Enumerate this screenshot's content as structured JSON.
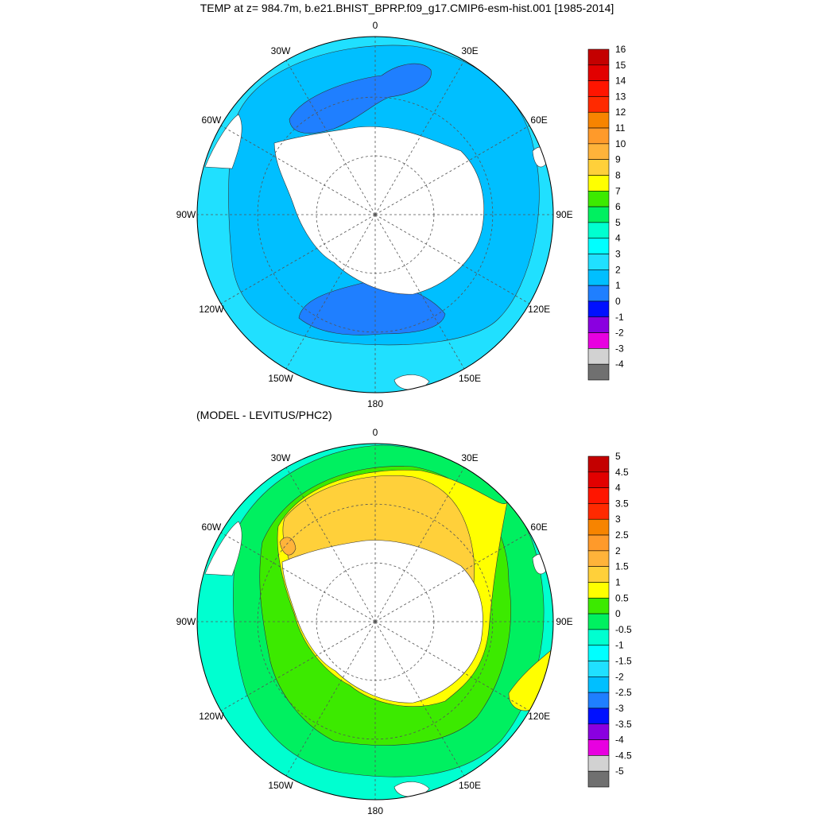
{
  "top_title": "TEMP at z= 984.7m, b.e21.BHIST_BPRP.f09_g17.CMIP6-esm-hist.001 [1985-2014]",
  "bottom_title": "(MODEL - LEVITUS/PHC2)",
  "lon_labels": [
    "0",
    "30E",
    "60E",
    "90E",
    "120E",
    "150E",
    "180",
    "150W",
    "120W",
    "90W",
    "60W",
    "30W"
  ],
  "top_colorbar": {
    "labels": [
      "16",
      "15",
      "14",
      "13",
      "12",
      "11",
      "10",
      "9",
      "8",
      "7",
      "6",
      "5",
      "4",
      "3",
      "2",
      "1",
      "0",
      "-1",
      "-2",
      "-3",
      "-4"
    ],
    "colors": [
      "#c40000",
      "#e20000",
      "#ff1500",
      "#ff2a00",
      "#f78400",
      "#ff9a2a",
      "#ffb33a",
      "#ffd03a",
      "#ffff00",
      "#3cea00",
      "#00f060",
      "#00ffd0",
      "#00ffff",
      "#20e0ff",
      "#00bfff",
      "#1f7fff",
      "#0010ff",
      "#8a00e0",
      "#e800e0",
      "#d2d2d2",
      "#707070"
    ]
  },
  "bottom_colorbar": {
    "labels": [
      "5",
      "4.5",
      "4",
      "3.5",
      "3",
      "2.5",
      "2",
      "1.5",
      "1",
      "0.5",
      "0",
      "-0.5",
      "-1",
      "-1.5",
      "-2",
      "-2.5",
      "-3",
      "-3.5",
      "-4",
      "-4.5",
      "-5"
    ],
    "colors": [
      "#c40000",
      "#e20000",
      "#ff1500",
      "#ff2a00",
      "#f78400",
      "#ff9a2a",
      "#ffb33a",
      "#ffd03a",
      "#ffff00",
      "#3cea00",
      "#00f060",
      "#00ffd0",
      "#00ffff",
      "#20e0ff",
      "#00bfff",
      "#1f7fff",
      "#0010ff",
      "#8a00e0",
      "#e800e0",
      "#d2d2d2",
      "#707070"
    ]
  },
  "colors": {
    "top_ocean_outer": "#20e0ff",
    "top_ocean_main": "#00bfff",
    "top_ocean_cold": "#1f7fff",
    "bot_outer": "#00ffd0",
    "bot_ring": "#00f060",
    "bot_warm": "#3cea00",
    "bot_band": "#ffff00",
    "bot_hot": "#ffd03a",
    "bot_hotspot": "#ffb33a",
    "land": "#ffffff"
  }
}
